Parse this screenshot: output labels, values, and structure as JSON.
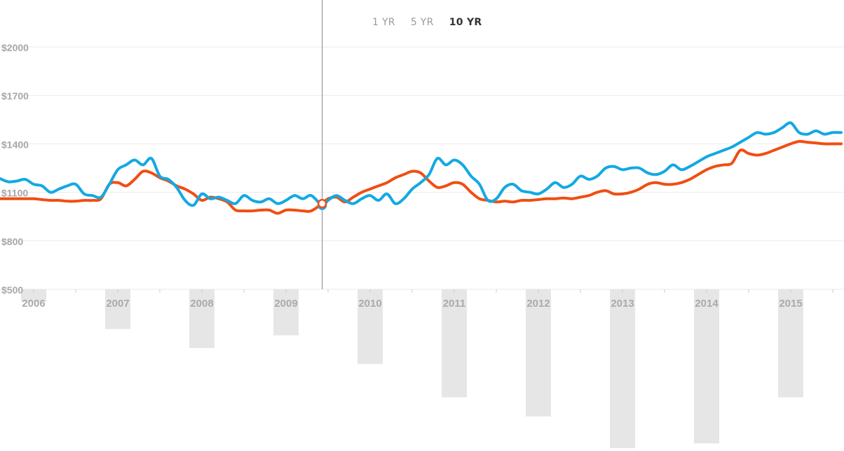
{
  "range_selector": {
    "options": [
      "1 YR",
      "5 YR",
      "10 YR"
    ],
    "selected": "10 YR"
  },
  "colors": {
    "series_blue": "#12a9e3",
    "series_orange": "#f04e12",
    "bars": "#e6e6e6",
    "grid": "#ebebeb",
    "cursor": "#999999"
  },
  "chart_data": {
    "type": "line",
    "y_ticks": [
      "$500",
      "$800",
      "$1100",
      "$1400",
      "$1700",
      "$2000"
    ],
    "ylim": [
      500,
      2100
    ],
    "x_labels": [
      "2006",
      "2007",
      "2008",
      "2009",
      "2010",
      "2011",
      "2012",
      "2013",
      "2014",
      "2015"
    ],
    "xlim": [
      2005.6,
      2015.6
    ],
    "grid": true,
    "cursor_x": 2009.43,
    "series": [
      {
        "color": "blue",
        "x": [
          2005.6,
          2005.7,
          2005.8,
          2005.9,
          2006.0,
          2006.1,
          2006.2,
          2006.3,
          2006.4,
          2006.5,
          2006.6,
          2006.7,
          2006.8,
          2006.9,
          2007.0,
          2007.1,
          2007.2,
          2007.3,
          2007.4,
          2007.5,
          2007.6,
          2007.7,
          2007.8,
          2007.9,
          2008.0,
          2008.1,
          2008.2,
          2008.3,
          2008.4,
          2008.5,
          2008.6,
          2008.7,
          2008.8,
          2008.9,
          2009.0,
          2009.1,
          2009.2,
          2009.3,
          2009.43,
          2009.5,
          2009.6,
          2009.7,
          2009.8,
          2009.9,
          2010.0,
          2010.1,
          2010.2,
          2010.3,
          2010.4,
          2010.5,
          2010.6,
          2010.7,
          2010.8,
          2010.9,
          2011.0,
          2011.1,
          2011.2,
          2011.3,
          2011.4,
          2011.5,
          2011.6,
          2011.7,
          2011.8,
          2011.9,
          2012.0,
          2012.1,
          2012.2,
          2012.3,
          2012.4,
          2012.5,
          2012.6,
          2012.7,
          2012.8,
          2012.9,
          2013.0,
          2013.1,
          2013.2,
          2013.3,
          2013.4,
          2013.5,
          2013.6,
          2013.7,
          2013.8,
          2013.9,
          2014.0,
          2014.1,
          2014.2,
          2014.3,
          2014.4,
          2014.5,
          2014.6,
          2014.7,
          2014.8,
          2014.9,
          2015.0,
          2015.1,
          2015.2,
          2015.3,
          2015.4,
          2015.5,
          2015.6
        ],
        "y": [
          1185,
          1165,
          1170,
          1180,
          1150,
          1140,
          1100,
          1120,
          1140,
          1150,
          1090,
          1080,
          1070,
          1150,
          1240,
          1270,
          1300,
          1270,
          1310,
          1200,
          1180,
          1130,
          1050,
          1020,
          1090,
          1060,
          1070,
          1050,
          1030,
          1080,
          1050,
          1040,
          1060,
          1030,
          1050,
          1080,
          1060,
          1080,
          1020,
          1050,
          1080,
          1050,
          1030,
          1060,
          1080,
          1050,
          1090,
          1030,
          1060,
          1120,
          1160,
          1210,
          1310,
          1270,
          1300,
          1270,
          1200,
          1150,
          1050,
          1060,
          1130,
          1150,
          1110,
          1100,
          1090,
          1120,
          1160,
          1130,
          1150,
          1200,
          1180,
          1200,
          1250,
          1260,
          1240,
          1250,
          1250,
          1220,
          1210,
          1230,
          1270,
          1240,
          1260,
          1290,
          1320,
          1340,
          1360,
          1380,
          1410,
          1440,
          1470,
          1460,
          1470,
          1500,
          1530,
          1470,
          1460,
          1480,
          1460,
          1470,
          1470
        ]
      },
      {
        "color": "orange",
        "x": [
          2005.6,
          2005.7,
          2005.8,
          2005.9,
          2006.0,
          2006.1,
          2006.2,
          2006.3,
          2006.4,
          2006.5,
          2006.6,
          2006.7,
          2006.8,
          2006.9,
          2007.0,
          2007.1,
          2007.2,
          2007.3,
          2007.4,
          2007.5,
          2007.6,
          2007.7,
          2007.8,
          2007.9,
          2008.0,
          2008.1,
          2008.2,
          2008.3,
          2008.4,
          2008.5,
          2008.6,
          2008.7,
          2008.8,
          2008.9,
          2009.0,
          2009.1,
          2009.2,
          2009.3,
          2009.43,
          2009.5,
          2009.6,
          2009.7,
          2009.8,
          2009.9,
          2010.0,
          2010.1,
          2010.2,
          2010.3,
          2010.4,
          2010.5,
          2010.6,
          2010.7,
          2010.8,
          2010.9,
          2011.0,
          2011.1,
          2011.2,
          2011.3,
          2011.4,
          2011.5,
          2011.6,
          2011.7,
          2011.8,
          2011.9,
          2012.0,
          2012.1,
          2012.2,
          2012.3,
          2012.4,
          2012.5,
          2012.6,
          2012.7,
          2012.8,
          2012.9,
          2013.0,
          2013.1,
          2013.2,
          2013.3,
          2013.4,
          2013.5,
          2013.6,
          2013.7,
          2013.8,
          2013.9,
          2014.0,
          2014.1,
          2014.2,
          2014.3,
          2014.4,
          2014.5,
          2014.6,
          2014.7,
          2014.8,
          2014.9,
          2015.0,
          2015.1,
          2015.2,
          2015.3,
          2015.4,
          2015.5,
          2015.6
        ],
        "y": [
          1060,
          1060,
          1060,
          1060,
          1060,
          1055,
          1050,
          1050,
          1045,
          1045,
          1050,
          1050,
          1060,
          1150,
          1160,
          1140,
          1180,
          1230,
          1220,
          1190,
          1170,
          1140,
          1120,
          1090,
          1050,
          1070,
          1060,
          1040,
          990,
          985,
          985,
          990,
          990,
          970,
          990,
          990,
          985,
          985,
          1030,
          1060,
          1070,
          1040,
          1070,
          1100,
          1120,
          1140,
          1160,
          1190,
          1210,
          1230,
          1220,
          1170,
          1130,
          1140,
          1160,
          1150,
          1100,
          1060,
          1050,
          1040,
          1045,
          1040,
          1050,
          1050,
          1055,
          1060,
          1060,
          1065,
          1060,
          1070,
          1080,
          1100,
          1110,
          1090,
          1090,
          1100,
          1120,
          1150,
          1160,
          1150,
          1150,
          1160,
          1180,
          1210,
          1240,
          1260,
          1270,
          1280,
          1360,
          1340,
          1330,
          1340,
          1360,
          1380,
          1400,
          1415,
          1410,
          1405,
          1400,
          1400,
          1400
        ]
      }
    ]
  },
  "bar_data": {
    "type": "bar",
    "note_series": "secondary",
    "x": [
      2006.0,
      2007.0,
      2008.0,
      2009.0,
      2010.0,
      2011.0,
      2012.0,
      2013.0,
      2014.0,
      2015.0
    ],
    "values": [
      -8,
      -25,
      -37,
      -29,
      -47,
      -68,
      -80,
      -100,
      -97,
      -68
    ]
  }
}
